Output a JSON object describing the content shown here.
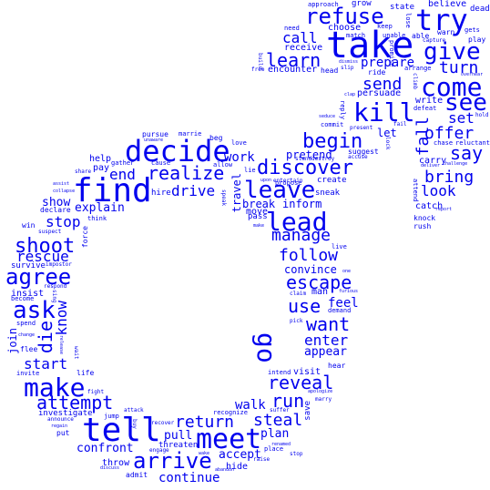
{
  "palette": {
    "text": "#0000ee",
    "background": "#ffffff"
  },
  "words": {
    "take": "take",
    "find": "find",
    "tell": "tell",
    "decide": "decide",
    "meet": "meet",
    "lead": "lead",
    "come": "come",
    "try": "try",
    "kill": "kill",
    "refuse": "refuse",
    "see": "see",
    "give": "give",
    "leave": "leave",
    "make": "make",
    "arrive": "arrive",
    "discover": "discover",
    "ask": "ask",
    "agree": "agree",
    "go": "go",
    "shoot": "shoot",
    "begin": "begin",
    "learn": "learn",
    "realize": "realize",
    "escape": "escape",
    "attempt": "attempt",
    "reveal": "reveal",
    "run": "run",
    "steal": "steal",
    "return": "return",
    "want": "want",
    "die": "die",
    "know": "know",
    "use": "use",
    "manage": "manage",
    "follow": "follow",
    "say": "say",
    "bring": "bring",
    "offer": "offer",
    "turn": "turn",
    "send": "send",
    "drive": "drive",
    "call": "call",
    "fall": "fall",
    "rescue": "rescue",
    "enter": "enter",
    "end": "end",
    "look": "look",
    "set": "set",
    "start": "start",
    "stop": "stop",
    "prepare": "prepare",
    "continue": "continue",
    "travel": "travel",
    "confront": "confront",
    "explain": "explain",
    "work": "work",
    "feel": "feel",
    "walk": "walk",
    "accept": "accept",
    "pull": "pull",
    "plan": "plan",
    "appear": "appear",
    "show": "show",
    "convince": "convince",
    "inform": "inform",
    "break": "break",
    "pretend": "pretend",
    "let": "let",
    "persuade": "persuade",
    "encounter": "encounter",
    "receive": "receive",
    "choose": "choose",
    "join": "join",
    "throw": "throw",
    "carry": "carry",
    "catch": "catch",
    "write": "write",
    "visit": "visit",
    "hide": "hide",
    "move": "move",
    "man": "man",
    "pass": "pass",
    "help": "help",
    "pay": "pay",
    "hire": "hire",
    "sneak": "sneak",
    "create": "create",
    "insist": "insist",
    "survive": "survive",
    "investigate": "investigate",
    "threaten": "threaten",
    "believe": "believe",
    "dead": "dead",
    "state": "state",
    "grow": "grow",
    "approach": "approach",
    "need": "need",
    "match": "match",
    "unable": "unable",
    "able": "able",
    "warn": "warn",
    "gets": "gets",
    "play": "play",
    "capture": "capture",
    "promise": "promise",
    "lose": "lose",
    "build": "build",
    "free": "free",
    "head": "head",
    "slip": "slip",
    "dismiss": "dismiss",
    "keep": "keep",
    "ride": "ride",
    "arrange": "arrange",
    "climb": "climb",
    "defeat": "defeat",
    "clap": "clap",
    "reply": "reply",
    "seduce": "seduce",
    "commit": "commit",
    "present": "present",
    "accuse": "accuse",
    "suggest": "suggest",
    "fail": "fail",
    "lock": "lock",
    "chase": "chase",
    "reluctant": "reluctant",
    "hold": "hold",
    "overhear": "overhear",
    "deliver": "deliver",
    "challenge": "challenge",
    "attend": "attend",
    "knock": "knock",
    "rush": "rush",
    "report": "report",
    "marrie": "marrie",
    "beg": "beg",
    "pursue": "pursue",
    "unaware": "unaware",
    "cause": "cause",
    "love": "love",
    "allow": "allow",
    "gather": "gather",
    "share": "share",
    "assist": "assist",
    "collapse": "collapse",
    "declare": "declare",
    "think": "think",
    "suspect": "suspect",
    "win": "win",
    "force": "force",
    "impostor": "impostor",
    "respond": "respond",
    "become": "become",
    "spend": "spend",
    "sing": "sing",
    "change": "change",
    "flee": "flee",
    "release": "release",
    "wait": "wait",
    "invite": "invite",
    "life": "life",
    "fight": "fight",
    "jump": "jump",
    "announce": "announce",
    "regain": "regain",
    "put": "put",
    "attack": "attack",
    "buy": "buy",
    "recover": "recover",
    "engage": "engage",
    "recognize": "recognize",
    "wake": "wake",
    "abandon": "abandon",
    "admit": "admit",
    "discuss": "discuss",
    "place": "place",
    "raise": "raise",
    "renamed": "renamed",
    "stop2": "stop",
    "suffer": "suffer",
    "apologize": "apologize",
    "marry": "marry",
    "hear": "hear",
    "intend": "intend",
    "save": "save",
    "pick": "pick",
    "demand": "demand",
    "claim": "claim",
    "furious": "furious",
    "live": "live",
    "lie": "lie",
    "speak": "speak",
    "destroy": "destroy",
    "stand": "stand",
    "propose": "propose",
    "entertain": "entertain",
    "upon": "upon",
    "make2": "make",
    "one": "one"
  }
}
